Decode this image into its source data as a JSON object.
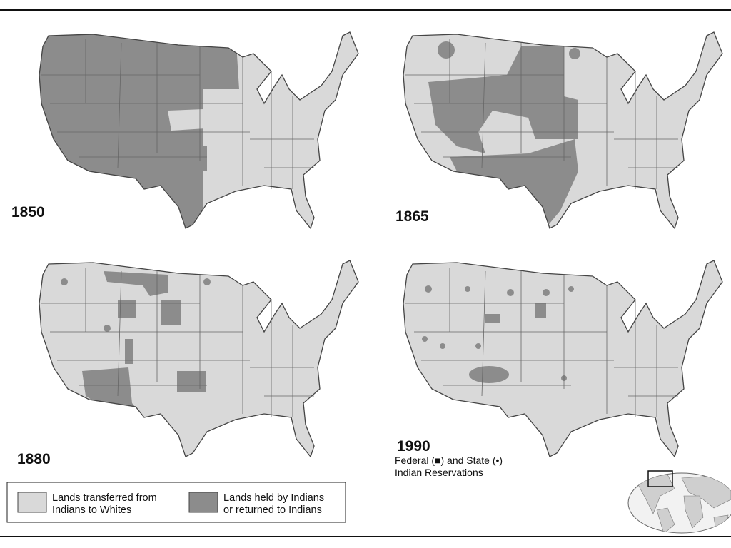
{
  "maps": [
    {
      "year": "1850"
    },
    {
      "year": "1865"
    },
    {
      "year": "1880"
    },
    {
      "year": "1990",
      "caption": [
        "Federal (■) and State (•)",
        "Indian Reservations"
      ]
    }
  ],
  "legend": {
    "items": [
      {
        "label": [
          "Lands transferred from",
          "Indians to Whites"
        ]
      },
      {
        "label": [
          "Lands held by Indians",
          "or returned to Indians"
        ]
      }
    ]
  }
}
